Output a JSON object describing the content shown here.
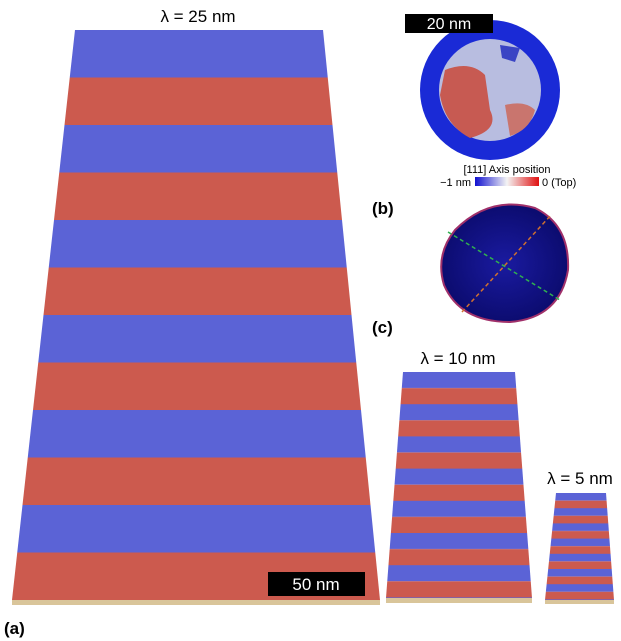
{
  "panel_a": {
    "label": "(a)",
    "wide": {
      "title": "λ = 25 nm",
      "scale_bar": "50 nm"
    },
    "medium": {
      "title": "λ = 10 nm"
    },
    "narrow": {
      "title": "λ = 5 nm"
    }
  },
  "panel_b": {
    "label": "(b)",
    "scale_bar": "20 nm",
    "colorbar": {
      "title": "[111] Axis position",
      "min_label": "−1 nm",
      "max_label": "0 (Top)"
    }
  },
  "panel_c": {
    "label": "(c)"
  }
}
